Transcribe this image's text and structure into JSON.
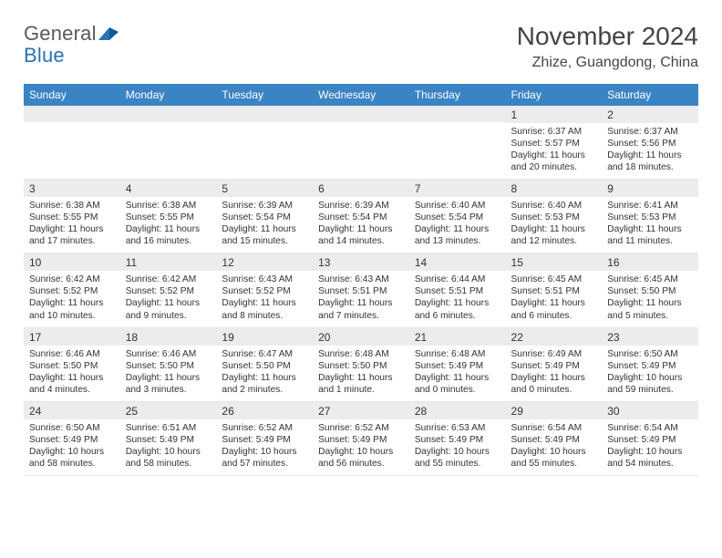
{
  "logo": {
    "word1": "General",
    "word2": "Blue"
  },
  "title": "November 2024",
  "location": "Zhize, Guangdong, China",
  "colors": {
    "header_bg": "#3b84c4",
    "header_text": "#ffffff",
    "daynum_bg": "#ececec",
    "body_text": "#333333",
    "logo_gray": "#5a5a5a",
    "logo_blue": "#2a72b5",
    "page_bg": "#ffffff",
    "border": "#e6e6e6"
  },
  "typography": {
    "title_fontsize": 28,
    "location_fontsize": 16,
    "dayhead_fontsize": 12,
    "daynum_fontsize": 12,
    "body_fontsize": 10.2
  },
  "day_headers": [
    "Sunday",
    "Monday",
    "Tuesday",
    "Wednesday",
    "Thursday",
    "Friday",
    "Saturday"
  ],
  "weeks": [
    [
      null,
      null,
      null,
      null,
      null,
      {
        "n": "1",
        "sunrise": "Sunrise: 6:37 AM",
        "sunset": "Sunset: 5:57 PM",
        "daylight": "Daylight: 11 hours and 20 minutes."
      },
      {
        "n": "2",
        "sunrise": "Sunrise: 6:37 AM",
        "sunset": "Sunset: 5:56 PM",
        "daylight": "Daylight: 11 hours and 18 minutes."
      }
    ],
    [
      {
        "n": "3",
        "sunrise": "Sunrise: 6:38 AM",
        "sunset": "Sunset: 5:55 PM",
        "daylight": "Daylight: 11 hours and 17 minutes."
      },
      {
        "n": "4",
        "sunrise": "Sunrise: 6:38 AM",
        "sunset": "Sunset: 5:55 PM",
        "daylight": "Daylight: 11 hours and 16 minutes."
      },
      {
        "n": "5",
        "sunrise": "Sunrise: 6:39 AM",
        "sunset": "Sunset: 5:54 PM",
        "daylight": "Daylight: 11 hours and 15 minutes."
      },
      {
        "n": "6",
        "sunrise": "Sunrise: 6:39 AM",
        "sunset": "Sunset: 5:54 PM",
        "daylight": "Daylight: 11 hours and 14 minutes."
      },
      {
        "n": "7",
        "sunrise": "Sunrise: 6:40 AM",
        "sunset": "Sunset: 5:54 PM",
        "daylight": "Daylight: 11 hours and 13 minutes."
      },
      {
        "n": "8",
        "sunrise": "Sunrise: 6:40 AM",
        "sunset": "Sunset: 5:53 PM",
        "daylight": "Daylight: 11 hours and 12 minutes."
      },
      {
        "n": "9",
        "sunrise": "Sunrise: 6:41 AM",
        "sunset": "Sunset: 5:53 PM",
        "daylight": "Daylight: 11 hours and 11 minutes."
      }
    ],
    [
      {
        "n": "10",
        "sunrise": "Sunrise: 6:42 AM",
        "sunset": "Sunset: 5:52 PM",
        "daylight": "Daylight: 11 hours and 10 minutes."
      },
      {
        "n": "11",
        "sunrise": "Sunrise: 6:42 AM",
        "sunset": "Sunset: 5:52 PM",
        "daylight": "Daylight: 11 hours and 9 minutes."
      },
      {
        "n": "12",
        "sunrise": "Sunrise: 6:43 AM",
        "sunset": "Sunset: 5:52 PM",
        "daylight": "Daylight: 11 hours and 8 minutes."
      },
      {
        "n": "13",
        "sunrise": "Sunrise: 6:43 AM",
        "sunset": "Sunset: 5:51 PM",
        "daylight": "Daylight: 11 hours and 7 minutes."
      },
      {
        "n": "14",
        "sunrise": "Sunrise: 6:44 AM",
        "sunset": "Sunset: 5:51 PM",
        "daylight": "Daylight: 11 hours and 6 minutes."
      },
      {
        "n": "15",
        "sunrise": "Sunrise: 6:45 AM",
        "sunset": "Sunset: 5:51 PM",
        "daylight": "Daylight: 11 hours and 6 minutes."
      },
      {
        "n": "16",
        "sunrise": "Sunrise: 6:45 AM",
        "sunset": "Sunset: 5:50 PM",
        "daylight": "Daylight: 11 hours and 5 minutes."
      }
    ],
    [
      {
        "n": "17",
        "sunrise": "Sunrise: 6:46 AM",
        "sunset": "Sunset: 5:50 PM",
        "daylight": "Daylight: 11 hours and 4 minutes."
      },
      {
        "n": "18",
        "sunrise": "Sunrise: 6:46 AM",
        "sunset": "Sunset: 5:50 PM",
        "daylight": "Daylight: 11 hours and 3 minutes."
      },
      {
        "n": "19",
        "sunrise": "Sunrise: 6:47 AM",
        "sunset": "Sunset: 5:50 PM",
        "daylight": "Daylight: 11 hours and 2 minutes."
      },
      {
        "n": "20",
        "sunrise": "Sunrise: 6:48 AM",
        "sunset": "Sunset: 5:50 PM",
        "daylight": "Daylight: 11 hours and 1 minute."
      },
      {
        "n": "21",
        "sunrise": "Sunrise: 6:48 AM",
        "sunset": "Sunset: 5:49 PM",
        "daylight": "Daylight: 11 hours and 0 minutes."
      },
      {
        "n": "22",
        "sunrise": "Sunrise: 6:49 AM",
        "sunset": "Sunset: 5:49 PM",
        "daylight": "Daylight: 11 hours and 0 minutes."
      },
      {
        "n": "23",
        "sunrise": "Sunrise: 6:50 AM",
        "sunset": "Sunset: 5:49 PM",
        "daylight": "Daylight: 10 hours and 59 minutes."
      }
    ],
    [
      {
        "n": "24",
        "sunrise": "Sunrise: 6:50 AM",
        "sunset": "Sunset: 5:49 PM",
        "daylight": "Daylight: 10 hours and 58 minutes."
      },
      {
        "n": "25",
        "sunrise": "Sunrise: 6:51 AM",
        "sunset": "Sunset: 5:49 PM",
        "daylight": "Daylight: 10 hours and 58 minutes."
      },
      {
        "n": "26",
        "sunrise": "Sunrise: 6:52 AM",
        "sunset": "Sunset: 5:49 PM",
        "daylight": "Daylight: 10 hours and 57 minutes."
      },
      {
        "n": "27",
        "sunrise": "Sunrise: 6:52 AM",
        "sunset": "Sunset: 5:49 PM",
        "daylight": "Daylight: 10 hours and 56 minutes."
      },
      {
        "n": "28",
        "sunrise": "Sunrise: 6:53 AM",
        "sunset": "Sunset: 5:49 PM",
        "daylight": "Daylight: 10 hours and 55 minutes."
      },
      {
        "n": "29",
        "sunrise": "Sunrise: 6:54 AM",
        "sunset": "Sunset: 5:49 PM",
        "daylight": "Daylight: 10 hours and 55 minutes."
      },
      {
        "n": "30",
        "sunrise": "Sunrise: 6:54 AM",
        "sunset": "Sunset: 5:49 PM",
        "daylight": "Daylight: 10 hours and 54 minutes."
      }
    ]
  ]
}
